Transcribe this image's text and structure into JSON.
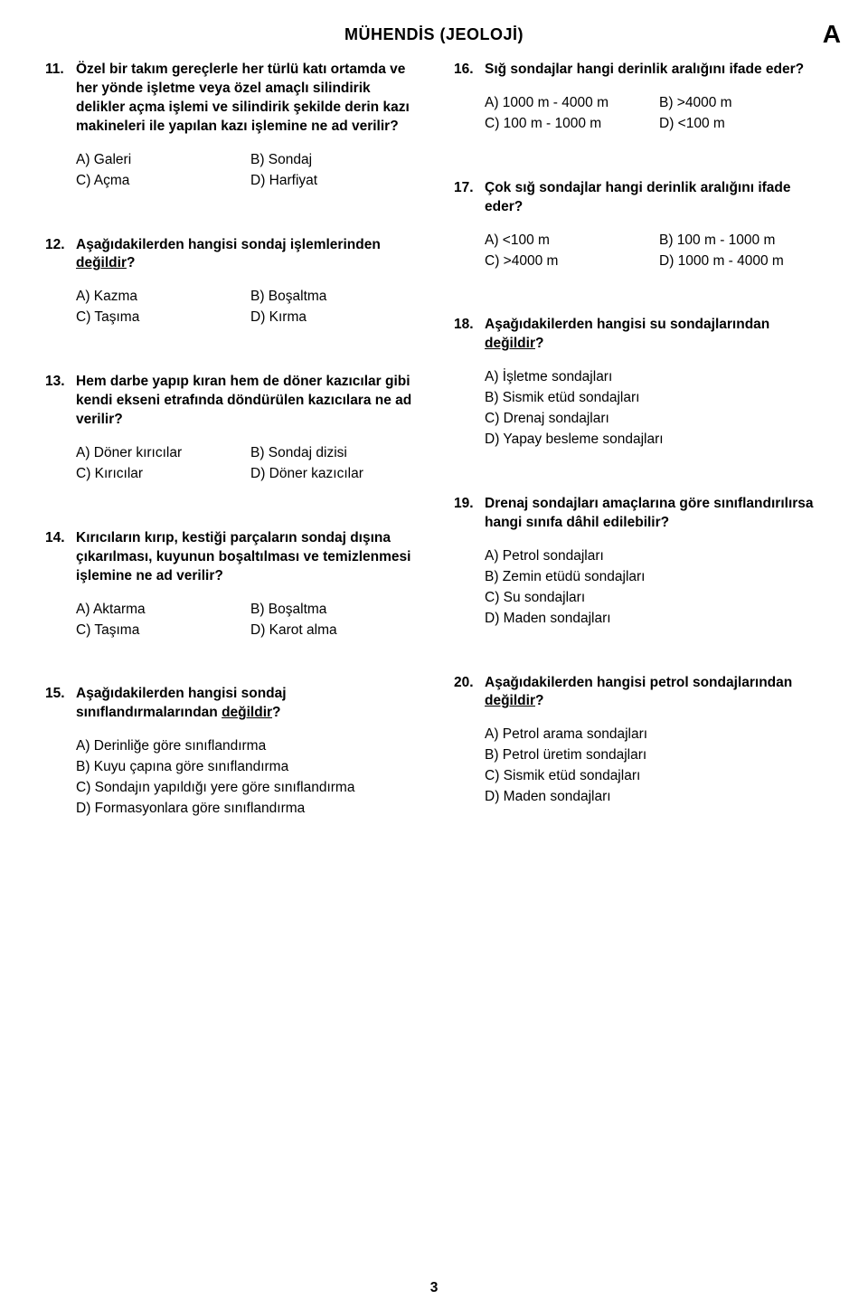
{
  "header": {
    "title": "MÜHENDİS (JEOLOJİ)",
    "letter": "A"
  },
  "page_number": "3",
  "left": [
    {
      "num": "11.",
      "text_parts": [
        "Özel bir takım gereçlerle her türlü katı ortamda ve her yönde işletme veya özel amaçlı silindirik delikler açma işlemi ve silindirik şekilde derin kazı makineleri ile yapılan kazı işlemine ne ad verilir?"
      ],
      "options_layout": "grid",
      "options": [
        "A) Galeri",
        "B) Sondaj",
        "C) Açma",
        "D) Harfiyat"
      ]
    },
    {
      "num": "12.",
      "text_parts": [
        "Aşağıdakilerden hangisi sondaj işlemlerinden ",
        {
          "u": "değildir"
        },
        "?"
      ],
      "options_layout": "grid",
      "options": [
        "A) Kazma",
        "B) Boşaltma",
        "C) Taşıma",
        "D) Kırma"
      ]
    },
    {
      "num": "13.",
      "text_parts": [
        "Hem darbe yapıp kıran hem de döner kazıcılar gibi kendi ekseni etrafında döndürülen kazıcılara ne ad verilir?"
      ],
      "options_layout": "grid",
      "options": [
        "A) Döner kırıcılar",
        "B) Sondaj dizisi",
        "C) Kırıcılar",
        "D) Döner kazıcılar"
      ]
    },
    {
      "num": "14.",
      "text_parts": [
        "Kırıcıların kırıp, kestiği parçaların sondaj dışına çıkarılması, kuyunun boşaltılması ve temizlenmesi işlemine ne ad verilir?"
      ],
      "options_layout": "grid",
      "options": [
        "A) Aktarma",
        "B) Boşaltma",
        "C) Taşıma",
        "D) Karot alma"
      ]
    },
    {
      "num": "15.",
      "text_parts": [
        "Aşağıdakilerden hangisi sondaj sınıflandırmalarından ",
        {
          "u": "değildir"
        },
        "?"
      ],
      "options_layout": "list",
      "options": [
        "A) Derinliğe göre sınıflandırma",
        "B) Kuyu çapına göre sınıflandırma",
        "C) Sondajın yapıldığı yere göre sınıflandırma",
        "D) Formasyonlara göre sınıflandırma"
      ]
    }
  ],
  "right": [
    {
      "num": "16.",
      "text_parts": [
        "Sığ sondajlar hangi derinlik aralığını ifade eder?"
      ],
      "options_layout": "grid",
      "options": [
        "A) 1000 m - 4000 m",
        "B) >4000 m",
        "C) 100 m - 1000 m",
        "D) <100 m"
      ]
    },
    {
      "num": "17.",
      "text_parts": [
        "Çok sığ sondajlar hangi derinlik aralığını ifade eder?"
      ],
      "options_layout": "grid",
      "options": [
        "A) <100 m",
        "B) 100 m - 1000 m",
        "C) >4000 m",
        "D) 1000 m - 4000 m"
      ]
    },
    {
      "num": "18.",
      "text_parts": [
        "Aşağıdakilerden hangisi su sondajlarından ",
        {
          "u": "değildir"
        },
        "?"
      ],
      "options_layout": "list",
      "options": [
        "A) İşletme sondajları",
        "B) Sismik etüd sondajları",
        "C) Drenaj sondajları",
        "D) Yapay besleme sondajları"
      ]
    },
    {
      "num": "19.",
      "text_parts": [
        "Drenaj sondajları amaçlarına göre sınıflandırılırsa hangi sınıfa dâhil edilebilir?"
      ],
      "options_layout": "list",
      "options": [
        "A) Petrol sondajları",
        "B) Zemin etüdü sondajları",
        "C) Su sondajları",
        "D) Maden  sondajları"
      ]
    },
    {
      "num": "20.",
      "text_parts": [
        "Aşağıdakilerden hangisi petrol sondajlarından ",
        {
          "u": "değildir"
        },
        "?"
      ],
      "options_layout": "list",
      "options": [
        "A) Petrol arama sondajları",
        "B) Petrol üretim sondajları",
        "C) Sismik etüd sondajları",
        "D) Maden  sondajları"
      ]
    }
  ]
}
